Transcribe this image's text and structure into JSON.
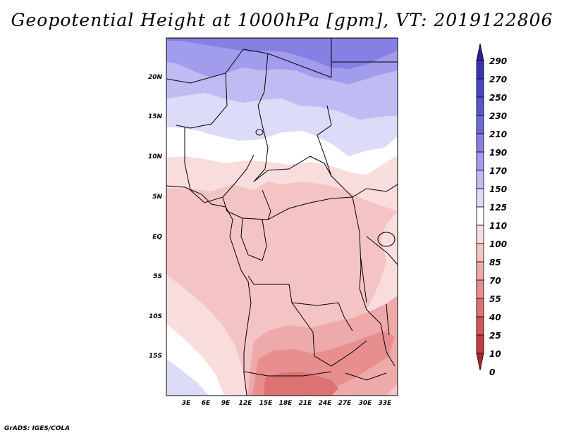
{
  "title": "Geopotential Height at 1000hPa [gpm], VT: 2019122806",
  "credit": "GrADS: IGES/COLA",
  "lat_labels": [
    "20N",
    "15N",
    "10N",
    "5N",
    "EQ",
    "5S",
    "10S",
    "15S"
  ],
  "lon_labels": [
    "3E",
    "6E",
    "9E",
    "12E",
    "15E",
    "18E",
    "21E",
    "24E",
    "27E",
    "30E",
    "33E"
  ],
  "colorbar": {
    "levels": [
      "290",
      "270",
      "250",
      "230",
      "210",
      "190",
      "170",
      "150",
      "125",
      "110",
      "100",
      "85",
      "70",
      "55",
      "40",
      "25",
      "10",
      "0"
    ],
    "colors": [
      "#2b2399",
      "#3a32b0",
      "#4a43c2",
      "#5a54cf",
      "#6e68da",
      "#8680e4",
      "#a19cec",
      "#bfbcf3",
      "#dcdbf8",
      "#ffffff",
      "#f9dcdc",
      "#f4c4c4",
      "#eeaaaa",
      "#e78f8f",
      "#dd7272",
      "#d45555",
      "#c63b3b",
      "#b22626"
    ]
  },
  "field_colors": {
    "v150_170": "#bfbcf3",
    "v170_190": "#a19cec",
    "v190_210": "#8680e4",
    "v125_150": "#dcdbf8",
    "v110_125": "#ffffff",
    "v100_110": "#f9dcdc",
    "v85_100": "#f4c4c4",
    "v70_85": "#eeaaaa",
    "v55_70": "#e78f8f",
    "v40_55": "#dd7272"
  }
}
